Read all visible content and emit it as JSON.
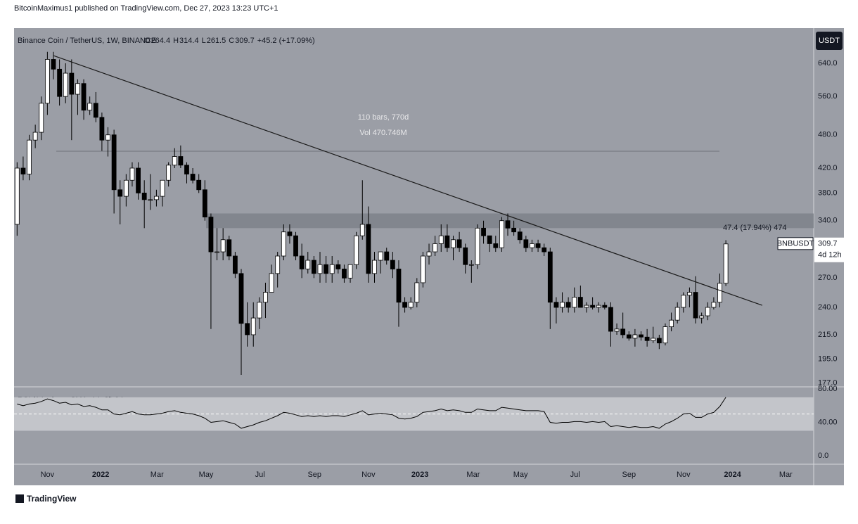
{
  "header": "BitcoinMaximus1 published on TradingView.com, Dec 27, 2023 13:23 UTC+1",
  "footer": "TradingView",
  "chart_data": {
    "type": "candlestick",
    "symbol": "Binance Coin / TetherUS, 1W, BINANCE",
    "ohlc_letters": [
      "O",
      "H",
      "L",
      "C"
    ],
    "change_label": "+45.2 (+17.09%)",
    "currency": "USDT",
    "price_label": "BNBUSDT",
    "countdown": "4d 12h",
    "measure_text": [
      "110 bars, 770d",
      "Vol 470.746M"
    ],
    "range_text": "47.4 (17.94%) 474",
    "log_scale": true,
    "ylim": [
      174.4,
      737
    ],
    "yticks": [
      {
        "value": 640,
        "label": "640.0"
      },
      {
        "value": 560,
        "label": "560.0"
      },
      {
        "value": 480,
        "label": "480.0"
      },
      {
        "value": 420,
        "label": "420.0"
      },
      {
        "value": 380,
        "label": "380.0"
      },
      {
        "value": 340,
        "label": "340.0"
      },
      {
        "value": 270,
        "label": "270.0"
      },
      {
        "value": 240,
        "label": "240.0"
      },
      {
        "value": 215,
        "label": "215.0"
      },
      {
        "value": 195,
        "label": "195.0"
      },
      {
        "value": 177,
        "label": "177.0"
      }
    ],
    "xlim": [
      -0.5,
      131.5
    ],
    "xticks": [
      {
        "value": 5,
        "label": "Nov"
      },
      {
        "value": 13.8,
        "label": "2022"
      },
      {
        "value": 23.1,
        "label": "Mar"
      },
      {
        "value": 31.2,
        "label": "May"
      },
      {
        "value": 40.1,
        "label": "Jul"
      },
      {
        "value": 49.1,
        "label": "Sep"
      },
      {
        "value": 58,
        "label": "Nov"
      },
      {
        "value": 66.5,
        "label": "2023"
      },
      {
        "value": 75.3,
        "label": "Mar"
      },
      {
        "value": 83.1,
        "label": "May"
      },
      {
        "value": 92.1,
        "label": "Jul"
      },
      {
        "value": 101,
        "label": "Sep"
      },
      {
        "value": 110,
        "label": "Nov"
      },
      {
        "value": 118.1,
        "label": "2024"
      },
      {
        "value": 126.9,
        "label": "Mar"
      }
    ],
    "up_color": "#ffffff",
    "down_color": "#000000",
    "resistance_zone": [
      330,
      350
    ],
    "trendline": {
      "from": [
        6,
        660
      ],
      "to": [
        123,
        242
      ]
    },
    "open": [
      335,
      420,
      410,
      470,
      485,
      545,
      650,
      625,
      560,
      615,
      565,
      590,
      530,
      545,
      515,
      470,
      480,
      385,
      375,
      400,
      420,
      380,
      370,
      370,
      375,
      400,
      425,
      440,
      425,
      410,
      400,
      385,
      345,
      300,
      300,
      315,
      295,
      275,
      225,
      215,
      230,
      245,
      255,
      275,
      295,
      325,
      320,
      295,
      280,
      290,
      275,
      285,
      275,
      285,
      280,
      270,
      285,
      320,
      335,
      275,
      290,
      300,
      290,
      280,
      245,
      240,
      245,
      265,
      295,
      300,
      310,
      320,
      305,
      315,
      305,
      285,
      285,
      330,
      320,
      310,
      305,
      340,
      330,
      325,
      315,
      305,
      310,
      305,
      300,
      245,
      240,
      245,
      240,
      250,
      240,
      242,
      240,
      242,
      240,
      218,
      220,
      215,
      212,
      215,
      213,
      210,
      212,
      208,
      222,
      228,
      240,
      252,
      255,
      230,
      232,
      240,
      245,
      264.4
    ],
    "high": [
      430,
      440,
      480,
      500,
      560,
      670,
      670,
      650,
      640,
      650,
      600,
      600,
      560,
      570,
      525,
      495,
      490,
      400,
      410,
      430,
      430,
      400,
      410,
      385,
      400,
      430,
      455,
      460,
      430,
      420,
      410,
      400,
      350,
      330,
      330,
      320,
      300,
      280,
      245,
      245,
      250,
      265,
      285,
      300,
      335,
      335,
      325,
      310,
      300,
      295,
      300,
      295,
      295,
      290,
      285,
      285,
      325,
      400,
      360,
      300,
      300,
      305,
      300,
      290,
      250,
      250,
      270,
      300,
      310,
      320,
      335,
      335,
      320,
      325,
      310,
      290,
      335,
      340,
      320,
      320,
      345,
      350,
      340,
      330,
      320,
      315,
      315,
      310,
      305,
      250,
      255,
      250,
      260,
      262,
      245,
      250,
      245,
      245,
      245,
      225,
      235,
      218,
      220,
      218,
      220,
      222,
      215,
      225,
      235,
      245,
      255,
      260,
      272,
      235,
      245,
      250,
      275,
      314.4
    ],
    "low": [
      320,
      400,
      400,
      455,
      470,
      520,
      600,
      540,
      545,
      470,
      520,
      510,
      520,
      505,
      450,
      440,
      350,
      335,
      360,
      390,
      370,
      330,
      355,
      360,
      360,
      390,
      420,
      420,
      395,
      395,
      380,
      340,
      220,
      290,
      290,
      290,
      270,
      183,
      205,
      205,
      220,
      230,
      255,
      260,
      290,
      310,
      290,
      270,
      275,
      270,
      265,
      265,
      265,
      275,
      265,
      265,
      280,
      315,
      265,
      265,
      275,
      285,
      270,
      222,
      235,
      238,
      240,
      260,
      285,
      295,
      300,
      300,
      290,
      300,
      275,
      265,
      280,
      310,
      300,
      300,
      300,
      320,
      320,
      310,
      300,
      300,
      300,
      295,
      220,
      225,
      235,
      235,
      235,
      240,
      235,
      238,
      235,
      238,
      205,
      215,
      212,
      210,
      205,
      210,
      205,
      208,
      203,
      206,
      218,
      225,
      235,
      240,
      225,
      225,
      228,
      238,
      240,
      261.5
    ],
    "close": [
      420,
      410,
      470,
      485,
      545,
      650,
      625,
      560,
      615,
      565,
      590,
      530,
      545,
      515,
      470,
      480,
      385,
      375,
      400,
      420,
      380,
      370,
      370,
      375,
      400,
      425,
      440,
      425,
      410,
      400,
      385,
      345,
      300,
      300,
      315,
      295,
      275,
      225,
      215,
      230,
      245,
      255,
      275,
      295,
      325,
      320,
      295,
      280,
      290,
      275,
      285,
      275,
      285,
      280,
      270,
      285,
      320,
      335,
      275,
      290,
      300,
      290,
      280,
      245,
      240,
      245,
      265,
      295,
      300,
      310,
      320,
      305,
      315,
      305,
      285,
      285,
      330,
      320,
      310,
      305,
      340,
      330,
      325,
      315,
      305,
      310,
      305,
      300,
      245,
      240,
      245,
      240,
      250,
      240,
      242,
      240,
      242,
      240,
      218,
      220,
      215,
      212,
      215,
      213,
      210,
      212,
      208,
      222,
      228,
      240,
      252,
      255,
      230,
      232,
      240,
      245,
      264.4,
      309.7
    ],
    "rsi": {
      "label": "RSI (14, close, SMA, 14, 2)",
      "color": "#000000",
      "ylim": [
        -10,
        82.5
      ],
      "yticks": [
        {
          "value": 80,
          "label": "80.00"
        },
        {
          "value": 40,
          "label": "40.00"
        },
        {
          "value": 0,
          "label": "0.0"
        }
      ],
      "band": [
        30,
        70
      ],
      "mid": 50,
      "values": [
        62,
        60,
        62,
        63,
        65,
        68,
        66,
        63,
        64,
        61,
        62,
        59,
        60,
        58,
        55,
        55,
        50,
        49,
        51,
        53,
        50,
        49,
        49,
        50,
        51,
        53,
        54,
        52,
        51,
        50,
        48,
        45,
        40,
        41,
        42,
        40,
        38,
        33,
        35,
        37,
        40,
        42,
        45,
        48,
        52,
        51,
        49,
        47,
        48,
        47,
        48,
        47,
        48,
        48,
        47,
        49,
        51,
        54,
        49,
        50,
        51,
        50,
        49,
        45,
        44,
        45,
        47,
        52,
        53,
        54,
        56,
        54,
        55,
        54,
        52,
        52,
        56,
        55,
        54,
        54,
        58,
        57,
        56,
        55,
        54,
        54,
        54,
        53,
        40,
        39,
        40,
        40,
        41,
        41,
        40,
        41,
        40,
        41,
        35,
        36,
        35,
        34,
        35,
        34,
        34,
        35,
        33,
        38,
        41,
        45,
        50,
        51,
        46,
        46,
        50,
        52,
        59,
        69.94
      ]
    }
  }
}
